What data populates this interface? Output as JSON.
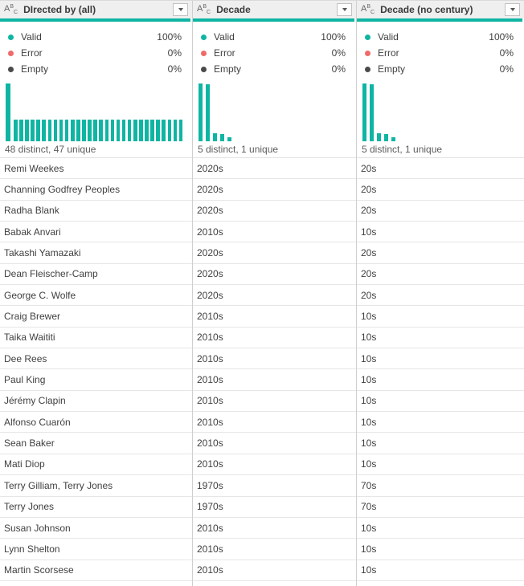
{
  "colors": {
    "accent_teal": "#0fb5a3",
    "error_red": "#f06a6a",
    "empty_gray": "#4a4a4a",
    "header_bg": "#efefef"
  },
  "columns": [
    {
      "type_icon": "ABC",
      "title": "DIrected by (all)",
      "stats": [
        {
          "label": "Valid",
          "value": "100%",
          "color": "#0fb5a3"
        },
        {
          "label": "Error",
          "value": "0%",
          "color": "#f06a6a"
        },
        {
          "label": "Empty",
          "value": "0%",
          "color": "#4a4a4a"
        }
      ],
      "histogram": [
        100,
        38,
        38,
        38,
        38,
        38,
        38,
        38,
        38,
        38,
        38,
        38,
        38,
        38,
        38,
        38,
        38,
        38,
        38,
        38,
        38,
        38,
        38,
        38,
        38,
        38,
        38,
        38,
        38,
        38,
        38
      ],
      "distinct_caption": "48 distinct, 47 unique",
      "rows": [
        "Remi Weekes",
        "Channing Godfrey Peoples",
        "Radha Blank",
        "Babak Anvari",
        "Takashi Yamazaki",
        "Dean Fleischer-Camp",
        "George C. Wolfe",
        "Craig Brewer",
        "Taika Waititi",
        "Dee Rees",
        "Paul King",
        "Jérémy Clapin",
        "Alfonso Cuarón",
        "Sean Baker",
        "Mati Diop",
        "Terry Gilliam, Terry Jones",
        "Terry Jones",
        "Susan Johnson",
        "Lynn Shelton",
        "Martin Scorsese"
      ]
    },
    {
      "type_icon": "ABC",
      "title": "Decade",
      "stats": [
        {
          "label": "Valid",
          "value": "100%",
          "color": "#0fb5a3"
        },
        {
          "label": "Error",
          "value": "0%",
          "color": "#f06a6a"
        },
        {
          "label": "Empty",
          "value": "0%",
          "color": "#4a4a4a"
        }
      ],
      "histogram": [
        100,
        98,
        14,
        12,
        7
      ],
      "distinct_caption": "5 distinct, 1 unique",
      "rows": [
        "2020s",
        "2020s",
        "2020s",
        "2010s",
        "2020s",
        "2020s",
        "2020s",
        "2010s",
        "2010s",
        "2010s",
        "2010s",
        "2010s",
        "2010s",
        "2010s",
        "2010s",
        "1970s",
        "1970s",
        "2010s",
        "2010s",
        "2010s"
      ]
    },
    {
      "type_icon": "ABC",
      "title": "Decade (no century)",
      "stats": [
        {
          "label": "Valid",
          "value": "100%",
          "color": "#0fb5a3"
        },
        {
          "label": "Error",
          "value": "0%",
          "color": "#f06a6a"
        },
        {
          "label": "Empty",
          "value": "0%",
          "color": "#4a4a4a"
        }
      ],
      "histogram": [
        100,
        98,
        14,
        12,
        7
      ],
      "distinct_caption": "5 distinct, 1 unique",
      "rows": [
        "20s",
        "20s",
        "20s",
        "10s",
        "20s",
        "20s",
        "20s",
        "10s",
        "10s",
        "10s",
        "10s",
        "10s",
        "10s",
        "10s",
        "10s",
        "70s",
        "70s",
        "10s",
        "10s",
        "10s"
      ]
    }
  ]
}
